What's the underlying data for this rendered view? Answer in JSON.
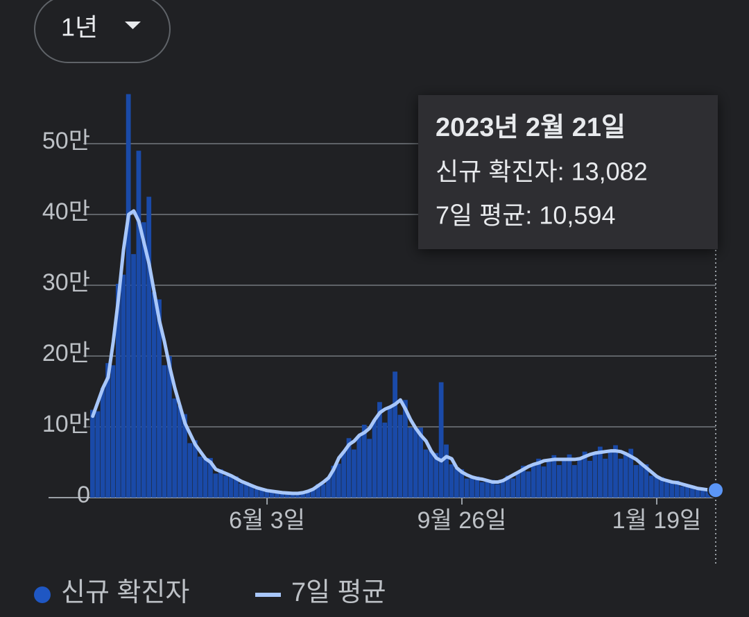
{
  "range_selector": {
    "label": "1년"
  },
  "chart_data": {
    "type": "bar",
    "categories": [
      null,
      null,
      null,
      null,
      null,
      null,
      null,
      null,
      null,
      null,
      null,
      null,
      null,
      null,
      null,
      null,
      null,
      null,
      null,
      null,
      null,
      null,
      null,
      null,
      null,
      null,
      null,
      null,
      null,
      null,
      null,
      null,
      null,
      null,
      "6월 3일",
      null,
      null,
      null,
      null,
      null,
      null,
      null,
      null,
      null,
      null,
      null,
      null,
      null,
      null,
      null,
      null,
      null,
      null,
      null,
      null,
      null,
      null,
      null,
      null,
      null,
      null,
      null,
      null,
      null,
      null,
      null,
      null,
      null,
      null,
      null,
      null,
      null,
      "9월 26일",
      null,
      null,
      null,
      null,
      null,
      null,
      null,
      null,
      null,
      null,
      null,
      null,
      null,
      null,
      null,
      null,
      null,
      null,
      null,
      null,
      null,
      null,
      null,
      null,
      null,
      null,
      null,
      null,
      null,
      null,
      null,
      null,
      null,
      null,
      null,
      null,
      null,
      "1월 19일",
      null,
      null,
      null,
      null,
      null,
      null,
      null,
      null,
      null,
      null,
      null
    ],
    "series": [
      {
        "name": "신규 확진자",
        "type": "bar",
        "color": "#1a4aa8",
        "legend_color": "#1f57c3",
        "values": [
          124000,
          122000,
          155000,
          190000,
          187000,
          302000,
          315000,
          570000,
          344000,
          490000,
          389000,
          425000,
          290000,
          280000,
          187000,
          200000,
          140000,
          130000,
          118000,
          77000,
          81000,
          58000,
          55000,
          56000,
          34000,
          40000,
          31000,
          31000,
          30000,
          20000,
          22000,
          17000,
          12000,
          13000,
          11000,
          8000,
          9000,
          7000,
          7000,
          5000,
          6000,
          8000,
          9000,
          13000,
          19000,
          19000,
          28000,
          45000,
          48000,
          65000,
          84000,
          68000,
          88000,
          103000,
          83000,
          110000,
          135000,
          106000,
          128000,
          178000,
          117000,
          138000,
          99000,
          98000,
          99000,
          68000,
          66000,
          63000,
          163000,
          75000,
          47000,
          42000,
          40000,
          27000,
          29000,
          30000,
          22000,
          24000,
          25000,
          19000,
          24000,
          31000,
          27000,
          36000,
          45000,
          37000,
          47000,
          55000,
          44000,
          53000,
          60000,
          46000,
          54000,
          61000,
          46000,
          55000,
          65000,
          52000,
          63000,
          72000,
          55000,
          66000,
          74000,
          55000,
          62000,
          69000,
          46000,
          48000,
          47000,
          31000,
          30000,
          29000,
          22000,
          22000,
          24000,
          16000,
          17000,
          17000,
          11000,
          12000,
          12000,
          13082
        ]
      },
      {
        "name": "7일 평균",
        "type": "line",
        "color": "#a8c7fa",
        "values": [
          115000,
          135000,
          155000,
          170000,
          220000,
          280000,
          350000,
          400000,
          405000,
          390000,
          360000,
          330000,
          290000,
          250000,
          220000,
          185000,
          155000,
          130000,
          105000,
          90000,
          75000,
          65000,
          55000,
          50000,
          40000,
          37000,
          34000,
          31000,
          27000,
          23000,
          20000,
          17000,
          14000,
          12000,
          10000,
          9000,
          8000,
          7000,
          6500,
          6000,
          6000,
          7000,
          9000,
          12000,
          17000,
          22000,
          28000,
          40000,
          56000,
          65000,
          75000,
          80000,
          88000,
          92000,
          98000,
          110000,
          120000,
          125000,
          128000,
          132000,
          138000,
          125000,
          110000,
          98000,
          88000,
          80000,
          66000,
          56000,
          52000,
          58000,
          55000,
          42000,
          36000,
          32000,
          29000,
          27000,
          26000,
          24000,
          22000,
          22000,
          24000,
          28000,
          32000,
          36000,
          40000,
          44000,
          47000,
          49000,
          52000,
          53000,
          54000,
          54000,
          54000,
          54000,
          54000,
          55000,
          58000,
          61000,
          63000,
          64000,
          65000,
          66000,
          66000,
          65000,
          62000,
          58000,
          54000,
          48000,
          42000,
          36000,
          30000,
          26000,
          24000,
          22000,
          21000,
          19000,
          17000,
          15000,
          13000,
          12000,
          11000,
          10594
        ]
      }
    ],
    "ylim": [
      0,
      575000
    ],
    "yticks": [
      0,
      {
        "value": 100000,
        "label": "10만"
      },
      {
        "value": 200000,
        "label": "20만"
      },
      {
        "value": 300000,
        "label": "30만"
      },
      {
        "value": 400000,
        "label": "40만"
      },
      {
        "value": 500000,
        "label": "50만"
      }
    ],
    "grid": true,
    "legend": "bottom-left",
    "tooltip": {
      "title": "2023년 2월 21일",
      "lines": [
        "신규 확진자: 13,082",
        "7일 평균: 10,594"
      ]
    }
  }
}
